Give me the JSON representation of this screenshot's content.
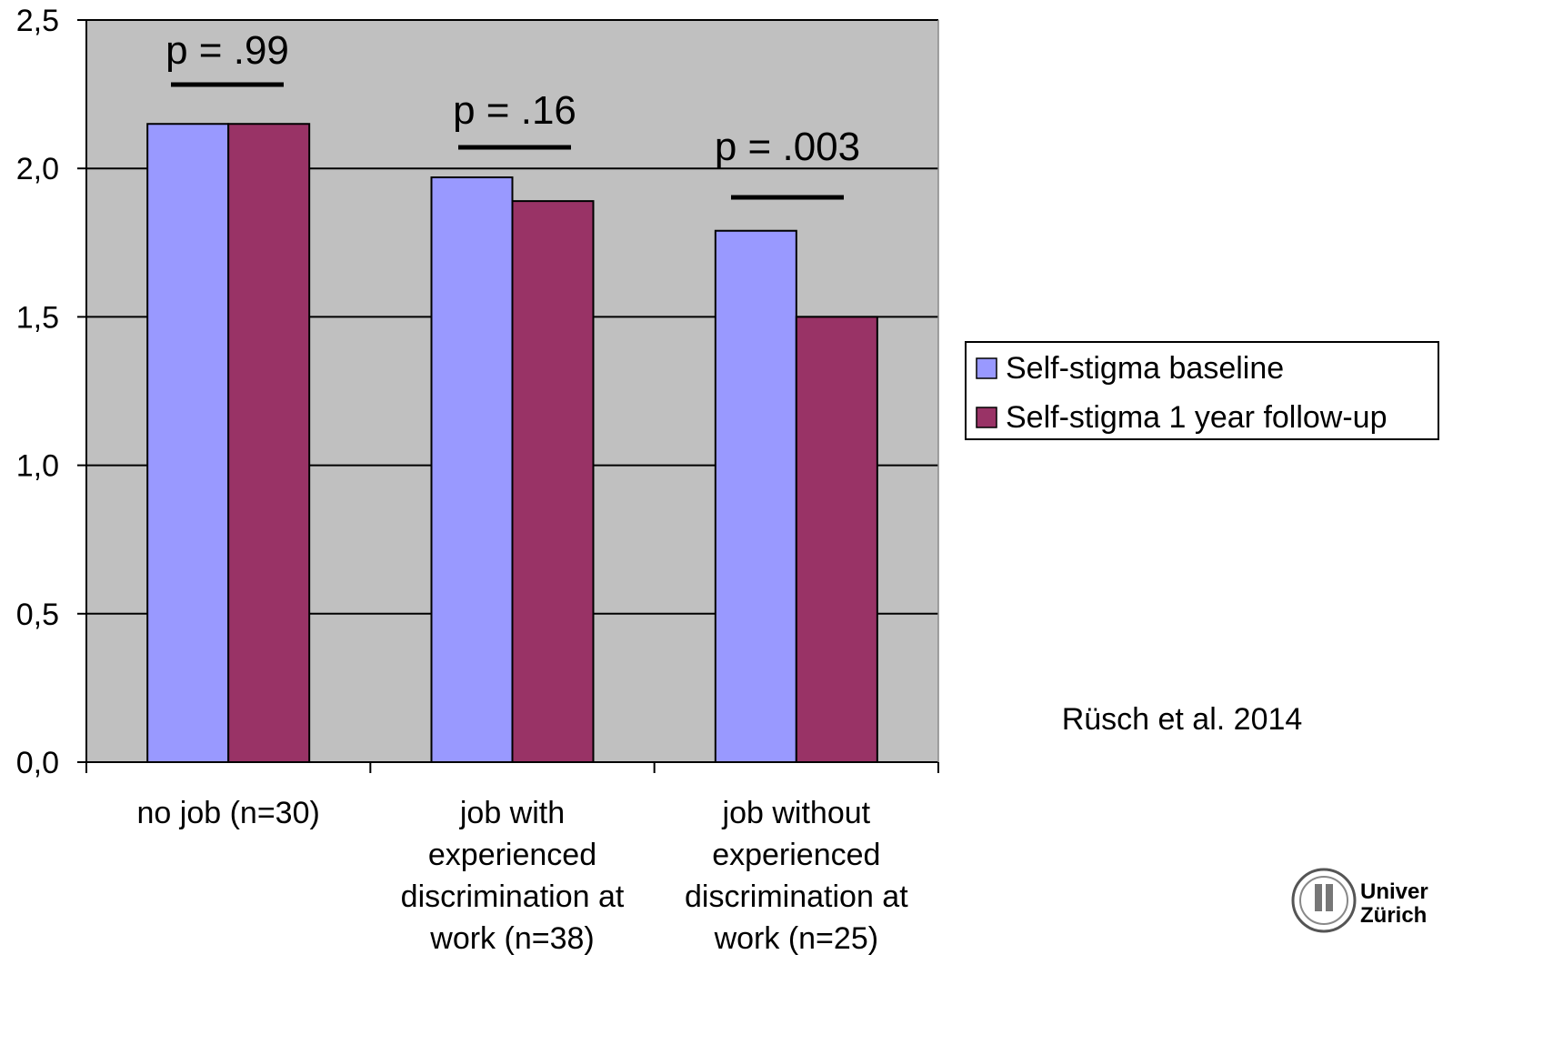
{
  "chart_data": {
    "type": "bar",
    "categories": [
      [
        "no job (n=30)"
      ],
      [
        "job with",
        "experienced",
        "discrimination at",
        "work (n=38)"
      ],
      [
        "job without",
        "experienced",
        "discrimination at",
        "work (n=25)"
      ]
    ],
    "series": [
      {
        "name": "Self-stigma baseline",
        "values": [
          2.15,
          1.97,
          1.79
        ],
        "color": "#9999ff"
      },
      {
        "name": "Self-stigma 1 year follow-up",
        "values": [
          2.15,
          1.89,
          1.5
        ],
        "color": "#993366"
      }
    ],
    "ylim": [
      0,
      2.5
    ],
    "yticks": [
      "0,0",
      "0,5",
      "1,0",
      "1,5",
      "2,0",
      "2,5"
    ],
    "ytick_values": [
      0,
      0.5,
      1.0,
      1.5,
      2.0,
      2.5
    ],
    "annotations": [
      "p = .99",
      "p = .16",
      "p = .003"
    ],
    "plot_background": "#c0c0c0",
    "grid": true,
    "legend_position": "right",
    "title": "",
    "xlabel": "",
    "ylabel": ""
  },
  "citation": "Rüsch et al. 2014",
  "logo": {
    "line1": "Univer",
    "line2": "Zürich"
  }
}
